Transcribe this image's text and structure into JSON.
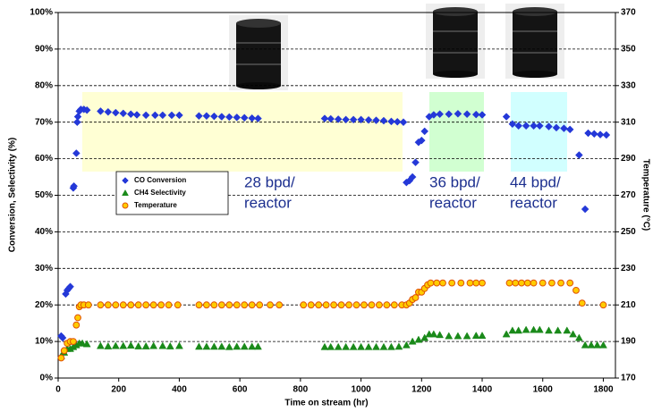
{
  "chart_data": {
    "type": "scatter",
    "x_label": "Time on stream (hr)",
    "y_label": "Conversion, Selectivity (%)",
    "y2_label": "Temperature (°C)",
    "xlim": [
      0,
      1840
    ],
    "xticks": [
      0,
      200,
      400,
      600,
      800,
      1000,
      1200,
      1400,
      1600,
      1800
    ],
    "ylim": [
      0,
      100
    ],
    "yticks": [
      {
        "value": 0,
        "label": "0%"
      },
      {
        "value": 10,
        "label": "10%"
      },
      {
        "value": 20,
        "label": "20%"
      },
      {
        "value": 30,
        "label": "30%"
      },
      {
        "value": 40,
        "label": "40%"
      },
      {
        "value": 50,
        "label": "50%"
      },
      {
        "value": 60,
        "label": "60%"
      },
      {
        "value": 70,
        "label": "70%"
      },
      {
        "value": 80,
        "label": "80%"
      },
      {
        "value": 90,
        "label": "90%"
      },
      {
        "value": 100,
        "label": "100%"
      }
    ],
    "y2lim": [
      170,
      370
    ],
    "y2ticks": [
      170,
      190,
      210,
      230,
      250,
      270,
      290,
      310,
      330,
      350,
      370
    ],
    "grid": true,
    "annotations": [
      [
        "28 bpd/",
        "reactor"
      ],
      [
        "36 bpd/",
        "reactor"
      ],
      [
        "44 bpd/",
        "reactor"
      ]
    ],
    "series": [
      {
        "name": "CO Conversion",
        "color": "#2438d8",
        "marker": "diamond",
        "x": [
          10,
          15,
          25,
          30,
          35,
          40,
          50,
          52,
          60,
          63,
          65,
          70,
          75,
          85,
          95,
          140,
          165,
          190,
          215,
          240,
          260,
          290,
          320,
          345,
          375,
          400,
          465,
          490,
          515,
          540,
          565,
          590,
          615,
          640,
          660,
          880,
          900,
          925,
          950,
          975,
          1000,
          1025,
          1050,
          1075,
          1100,
          1120,
          1140,
          1150,
          1160,
          1170,
          1180,
          1190,
          1200,
          1210,
          1225,
          1240,
          1260,
          1290,
          1320,
          1350,
          1380,
          1400,
          1480,
          1500,
          1520,
          1545,
          1570,
          1590,
          1620,
          1645,
          1670,
          1690,
          1720,
          1740,
          1750,
          1770,
          1790,
          1810
        ],
        "values": [
          11.5,
          11,
          23,
          24,
          24.5,
          25,
          52,
          52.5,
          61.5,
          70,
          71.5,
          73,
          73.5,
          73.5,
          73.3,
          73,
          72.8,
          72.6,
          72.4,
          72.2,
          72,
          71.9,
          71.9,
          71.9,
          71.9,
          71.9,
          71.7,
          71.7,
          71.6,
          71.5,
          71.4,
          71.3,
          71.2,
          71.1,
          71,
          71,
          70.9,
          70.8,
          70.7,
          70.7,
          70.7,
          70.6,
          70.5,
          70.4,
          70.2,
          70.1,
          70,
          53.5,
          54,
          55,
          59,
          64.5,
          65,
          67.5,
          71.5,
          72,
          72.2,
          72.2,
          72.3,
          72.2,
          72.1,
          72,
          71.5,
          69.5,
          69,
          69,
          69,
          69,
          68.8,
          68.5,
          68.3,
          68,
          61,
          46.2,
          67,
          66.8,
          66.6,
          66.5
        ]
      },
      {
        "name": "CH4 Selectivity",
        "color": "#1a8a1a",
        "marker": "triangle",
        "x": [
          10,
          20,
          30,
          40,
          50,
          60,
          70,
          80,
          95,
          140,
          165,
          190,
          215,
          240,
          265,
          290,
          315,
          345,
          370,
          400,
          465,
          490,
          515,
          540,
          565,
          590,
          615,
          640,
          660,
          880,
          900,
          925,
          950,
          975,
          1000,
          1025,
          1050,
          1075,
          1100,
          1125,
          1150,
          1170,
          1190,
          1210,
          1225,
          1240,
          1260,
          1290,
          1320,
          1350,
          1380,
          1400,
          1480,
          1500,
          1520,
          1545,
          1570,
          1590,
          1620,
          1650,
          1680,
          1700,
          1720,
          1740,
          1760,
          1780,
          1800
        ],
        "values": [
          6,
          7,
          8,
          8,
          8.5,
          9,
          9.5,
          9.5,
          9.3,
          8.8,
          8.7,
          8.8,
          8.8,
          8.9,
          8.7,
          8.7,
          8.8,
          8.8,
          8.7,
          8.8,
          8.6,
          8.6,
          8.6,
          8.6,
          8.5,
          8.6,
          8.6,
          8.6,
          8.6,
          8.5,
          8.5,
          8.5,
          8.5,
          8.5,
          8.5,
          8.5,
          8.5,
          8.5,
          8.5,
          8.6,
          9,
          10,
          10.5,
          11,
          12,
          12,
          11.8,
          11.5,
          11.5,
          11.5,
          11.6,
          11.6,
          12,
          13,
          13,
          13.2,
          13.2,
          13.2,
          13,
          13,
          13,
          12,
          11,
          9,
          9,
          9,
          9
        ]
      },
      {
        "name": "Temperature",
        "color": "#ffcc00",
        "stroke": "#e05000",
        "marker": "circle",
        "axis": "y2",
        "x": [
          10,
          20,
          30,
          40,
          50,
          60,
          65,
          70,
          75,
          85,
          100,
          140,
          165,
          190,
          215,
          240,
          265,
          290,
          315,
          340,
          365,
          395,
          465,
          490,
          515,
          540,
          565,
          590,
          615,
          640,
          665,
          700,
          730,
          810,
          835,
          860,
          885,
          910,
          935,
          960,
          985,
          1010,
          1035,
          1060,
          1085,
          1110,
          1135,
          1150,
          1160,
          1170,
          1180,
          1190,
          1200,
          1210,
          1220,
          1230,
          1250,
          1270,
          1300,
          1330,
          1360,
          1380,
          1400,
          1490,
          1510,
          1530,
          1550,
          1570,
          1600,
          1630,
          1660,
          1690,
          1710,
          1730,
          1800
        ],
        "values": [
          181,
          185,
          189,
          190,
          190,
          199,
          203,
          209,
          210,
          210,
          210,
          210,
          210,
          210,
          210,
          210,
          210,
          210,
          210,
          210,
          210,
          210,
          210,
          210,
          210,
          210,
          210,
          210,
          210,
          210,
          210,
          210,
          210,
          210,
          210,
          210,
          210,
          210,
          210,
          210,
          210,
          210,
          210,
          210,
          210,
          210,
          210,
          210,
          211,
          213,
          214,
          217,
          217,
          219,
          221,
          222,
          222,
          222,
          222,
          222,
          222,
          222,
          222,
          222,
          222,
          222,
          222,
          222,
          222,
          222,
          222,
          222,
          218,
          211,
          210
        ]
      }
    ]
  }
}
